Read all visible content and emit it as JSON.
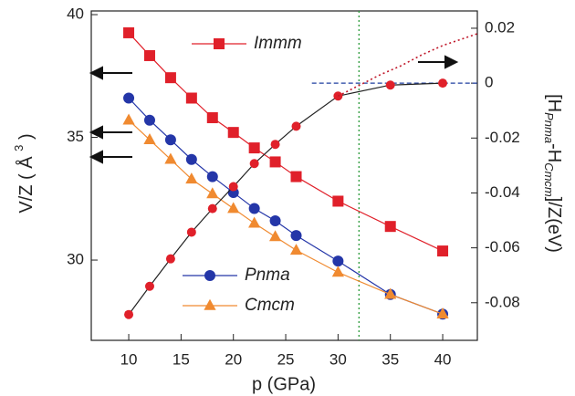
{
  "chart_data": {
    "type": "line",
    "xlabel": "p (GPa)",
    "ylabel": [
      "V/Z ( Å ",
      "3",
      " )"
    ],
    "y2label": [
      "[H",
      "Pnma",
      "-H",
      "Cmcm",
      "]/Z(eV)"
    ],
    "x": [
      10,
      12,
      14,
      16,
      18,
      20,
      22,
      24,
      26,
      30,
      35,
      40
    ],
    "xlim": [
      6.42,
      43.31
    ],
    "xticks": [
      10,
      15,
      20,
      25,
      30,
      35,
      40
    ],
    "ylim": [
      26.73,
      40.15
    ],
    "yticks": [
      30,
      35,
      40
    ],
    "y2lim": [
      -0.0937,
      0.0263
    ],
    "y2ticks": [
      0.02,
      0,
      -0.02,
      -0.04,
      -0.06,
      -0.08
    ],
    "series": [
      {
        "name": "Immm",
        "color": "#e0202a",
        "marker": "square",
        "values": [
          39.26,
          38.33,
          37.43,
          36.6,
          35.8,
          35.2,
          34.57,
          34.0,
          33.4,
          32.4,
          31.37,
          30.37
        ]
      },
      {
        "name": "Pnma",
        "color": "#2436a8",
        "marker": "circle",
        "values": [
          36.6,
          35.7,
          34.9,
          34.1,
          33.4,
          32.75,
          32.1,
          31.6,
          31.0,
          29.96,
          28.6,
          27.8
        ]
      },
      {
        "name": "Cmcm",
        "color": "#f08a30",
        "marker": "triangle",
        "values": [
          35.7,
          34.9,
          34.1,
          33.3,
          32.7,
          32.1,
          31.5,
          30.95,
          30.4,
          29.5,
          28.6,
          27.8
        ]
      },
      {
        "color": "#e0202a",
        "line_color": "#222222",
        "marker": "circle",
        "axis": "y2",
        "values": [
          -0.0843,
          -0.074,
          -0.064,
          -0.0543,
          -0.0457,
          -0.0377,
          -0.0293,
          -0.0223,
          -0.0157,
          -0.0047,
          -0.0007,
          0
        ]
      },
      {
        "color": "#c0182a",
        "dash": "dotted",
        "axis": "y2",
        "x": [
          30,
          34,
          36,
          38,
          40,
          42,
          43.31
        ],
        "values": [
          -0.0047,
          0.003,
          0.0063,
          0.0103,
          0.0137,
          0.0163,
          0.018
        ]
      }
    ],
    "reference_lines": [
      {
        "axis": "y2",
        "value": 0,
        "from": 27.5,
        "color": "#1f3fa0"
      },
      {
        "axis": "x",
        "value": 32,
        "color": "#2a9a3a"
      }
    ]
  }
}
